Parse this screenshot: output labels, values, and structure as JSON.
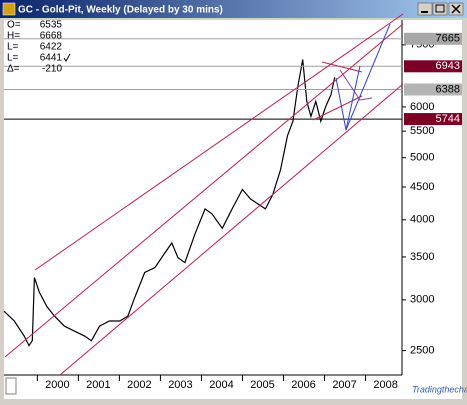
{
  "window": {
    "title": "GC - Gold-Pit, Weekly (Delayed by 30 mins)",
    "watermark": "Tradingthecharts.com"
  },
  "chart_data": {
    "type": "line",
    "readout": [
      {
        "label": "O=",
        "value": 6535
      },
      {
        "label": "H=",
        "value": 6668
      },
      {
        "label": "L=",
        "value": 6422
      },
      {
        "label": "L=",
        "value": 6441
      },
      {
        "label": "Δ=",
        "value": -210
      }
    ],
    "x": [
      1998.7,
      1998.95,
      1999.19,
      1999.31,
      1999.39,
      1999.44,
      1999.56,
      1999.75,
      1999.93,
      2000.17,
      2000.42,
      2000.66,
      2000.83,
      2001.03,
      2001.27,
      2001.52,
      2001.72,
      2001.89,
      2002.13,
      2002.38,
      2002.62,
      2002.79,
      2002.94,
      2003.11,
      2003.36,
      2003.6,
      2003.77,
      2004.02,
      2004.26,
      2004.51,
      2004.71,
      2004.9,
      2005.07,
      2005.25,
      2005.44,
      2005.61,
      2005.74,
      2005.86,
      2005.98,
      2006.08,
      2006.18,
      2006.3,
      2006.42,
      2006.54,
      2006.67,
      2006.76
    ],
    "series": [
      {
        "color": "#000000",
        "values": [
          2880,
          2780,
          2635,
          2545,
          2590,
          3250,
          3085,
          2925,
          2830,
          2730,
          2680,
          2635,
          2590,
          2730,
          2780,
          2780,
          2830,
          3030,
          3310,
          3370,
          3550,
          3680,
          3490,
          3430,
          3810,
          4160,
          4085,
          3880,
          4160,
          4460,
          4310,
          4230,
          4160,
          4380,
          4785,
          5410,
          5700,
          6450,
          7115,
          6120,
          5800,
          6120,
          5700,
          6010,
          6270,
          6675
        ]
      }
    ],
    "xlim": [
      1998.7,
      2008.4
    ],
    "xticks": [
      2000,
      2001,
      2002,
      2003,
      2004,
      2005,
      2006,
      2007,
      2008
    ],
    "ylim": [
      2290,
      8200
    ],
    "yticks": [
      2500,
      3000,
      3500,
      4000,
      4500,
      5000,
      5500,
      6000,
      7500
    ],
    "log_scale": true,
    "price_markers": [
      {
        "value": 7665,
        "color": "#a8a8a8"
      },
      {
        "value": 6943,
        "color": "#7a0026"
      },
      {
        "value": 6388,
        "color": "#b4b4b4"
      },
      {
        "value": 5744,
        "color": "#7a0026"
      }
    ]
  }
}
